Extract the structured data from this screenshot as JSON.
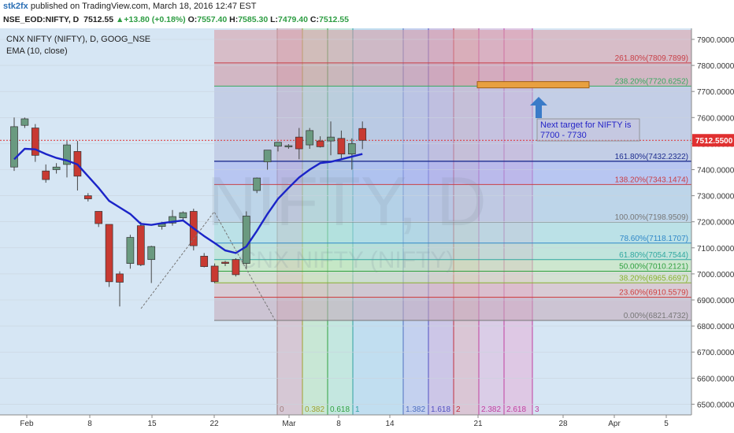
{
  "header": {
    "user": "stk2fx",
    "published": "published on TradingView.com, March 18, 2016 12:47 EST",
    "symbol": "NSE_EOD:NIFTY, D",
    "last": "7512.55",
    "change": "+13.80 (+0.18%)",
    "o_label": "O:",
    "open": "7557.40",
    "h_label": "H:",
    "high": "7585.30",
    "l_label": "L:",
    "low": "7479.40",
    "c_label": "C:",
    "close": "7512.55"
  },
  "legend": {
    "line1": "CNX NIFTY (NIFTY), D, GOOG_NSE",
    "line2": "EMA (10, close)"
  },
  "watermark": {
    "big": "NIFTY, D",
    "small": "CNX NIFTY (NIFTY)"
  },
  "colors": {
    "plot_bg": "#d6e6f4",
    "up_candle": "#6a9a80",
    "down_candle": "#c83a32",
    "ema": "#1b24c8",
    "price_line": "#e03030",
    "price_label_bg": "#e03030",
    "target_box": "#e8a040",
    "arrow": "#3a7bc8",
    "annotation_text": "#2424c8"
  },
  "chart_data": {
    "type": "candlestick",
    "title": "CNX NIFTY (NIFTY), D, GOOG_NSE",
    "ylim": [
      6450,
      7950
    ],
    "y_ticks": [
      "7900.0000",
      "7800.0000",
      "7700.0000",
      "7600.0000",
      "7500.0000",
      "7400.0000",
      "7300.0000",
      "7200.0000",
      "7100.0000",
      "7000.0000",
      "6900.0000",
      "6800.0000",
      "6700.0000",
      "6600.0000",
      "6500.0000"
    ],
    "x_ticks": [
      "Feb",
      "8",
      "15",
      "22",
      "Mar",
      "8",
      "14",
      "21",
      "28",
      "Apr",
      "5"
    ],
    "last_price_label": "7512.5500",
    "last_price": 7512.55,
    "candles": [
      {
        "x": "Feb 1",
        "o": 7410,
        "h": 7600,
        "l": 7395,
        "c": 7565
      },
      {
        "x": "Feb 2",
        "o": 7570,
        "h": 7600,
        "l": 7560,
        "c": 7595
      },
      {
        "x": "Feb 3",
        "o": 7560,
        "h": 7575,
        "l": 7430,
        "c": 7455
      },
      {
        "x": "Feb 4",
        "o": 7395,
        "h": 7420,
        "l": 7350,
        "c": 7362
      },
      {
        "x": "Feb 5",
        "o": 7400,
        "h": 7425,
        "l": 7385,
        "c": 7410
      },
      {
        "x": "Feb 8",
        "o": 7420,
        "h": 7510,
        "l": 7370,
        "c": 7495
      },
      {
        "x": "Feb 9",
        "o": 7470,
        "h": 7510,
        "l": 7320,
        "c": 7375
      },
      {
        "x": "Feb 10",
        "o": 7300,
        "h": 7310,
        "l": 7278,
        "c": 7288
      },
      {
        "x": "Feb 11",
        "o": 7240,
        "h": 7240,
        "l": 7180,
        "c": 7193
      },
      {
        "x": "Feb 12",
        "o": 7190,
        "h": 7190,
        "l": 6950,
        "c": 6970
      },
      {
        "x": "Feb 15",
        "o": 7000,
        "h": 7010,
        "l": 6875,
        "c": 6968
      },
      {
        "x": "Feb 16",
        "o": 7040,
        "h": 7150,
        "l": 7020,
        "c": 7140
      },
      {
        "x": "Feb 17",
        "o": 7185,
        "h": 7200,
        "l": 7030,
        "c": 7035
      },
      {
        "x": "Feb 18",
        "o": 7055,
        "h": 7108,
        "l": 6965,
        "c": 7105
      },
      {
        "x": "Feb 19",
        "o": 7182,
        "h": 7200,
        "l": 7170,
        "c": 7192
      },
      {
        "x": "Feb 22",
        "o": 7195,
        "h": 7245,
        "l": 7185,
        "c": 7220
      },
      {
        "x": "Feb 23",
        "o": 7215,
        "h": 7240,
        "l": 7205,
        "c": 7235
      },
      {
        "x": "Feb 24",
        "o": 7240,
        "h": 7250,
        "l": 7090,
        "c": 7108
      },
      {
        "x": "Feb 25",
        "o": 7068,
        "h": 7080,
        "l": 7025,
        "c": 7028
      },
      {
        "x": "Feb 26",
        "o": 7030,
        "h": 7040,
        "l": 6965,
        "c": 6970
      },
      {
        "x": "Feb 29",
        "o": 7045,
        "h": 7050,
        "l": 7030,
        "c": 7040
      },
      {
        "x": "Mar 1",
        "o": 7055,
        "h": 7060,
        "l": 6990,
        "c": 6997
      },
      {
        "x": "Mar 2",
        "o": 7040,
        "h": 7240,
        "l": 7020,
        "c": 7222
      },
      {
        "x": "Mar 3",
        "o": 7320,
        "h": 7370,
        "l": 7310,
        "c": 7368
      },
      {
        "x": "Mar 4",
        "o": 7430,
        "h": 7475,
        "l": 7400,
        "c": 7475
      },
      {
        "x": "Mar 7",
        "o": 7490,
        "h": 7505,
        "l": 7470,
        "c": 7505
      },
      {
        "x": "Mar 8",
        "o": 7490,
        "h": 7498,
        "l": 7480,
        "c": 7492
      },
      {
        "x": "Mar 9",
        "o": 7525,
        "h": 7560,
        "l": 7440,
        "c": 7480
      },
      {
        "x": "Mar 10",
        "o": 7495,
        "h": 7560,
        "l": 7480,
        "c": 7550
      },
      {
        "x": "Mar 11",
        "o": 7510,
        "h": 7528,
        "l": 7485,
        "c": 7488
      },
      {
        "x": "Mar 14",
        "o": 7510,
        "h": 7585,
        "l": 7455,
        "c": 7525
      },
      {
        "x": "Mar 15",
        "o": 7520,
        "h": 7550,
        "l": 7440,
        "c": 7460
      },
      {
        "x": "Mar 16",
        "o": 7460,
        "h": 7520,
        "l": 7400,
        "c": 7500
      },
      {
        "x": "Mar 17",
        "o": 7558,
        "h": 7585,
        "l": 7479,
        "c": 7512.55
      }
    ],
    "ema": {
      "name": "EMA (10, close)",
      "points": [
        [
          "Feb 1",
          7440
        ],
        [
          "Feb 2",
          7480
        ],
        [
          "Feb 3",
          7478
        ],
        [
          "Feb 4",
          7460
        ],
        [
          "Feb 5",
          7445
        ],
        [
          "Feb 8",
          7435
        ],
        [
          "Feb 9",
          7420
        ],
        [
          "Feb 10",
          7375
        ],
        [
          "Feb 11",
          7330
        ],
        [
          "Feb 12",
          7280
        ],
        [
          "Feb 15",
          7255
        ],
        [
          "Feb 16",
          7230
        ],
        [
          "Feb 17",
          7192
        ],
        [
          "Feb 18",
          7188
        ],
        [
          "Feb 19",
          7195
        ],
        [
          "Feb 22",
          7200
        ],
        [
          "Feb 23",
          7205
        ],
        [
          "Feb 24",
          7175
        ],
        [
          "Feb 25",
          7145
        ],
        [
          "Feb 26",
          7118
        ],
        [
          "Feb 29",
          7090
        ],
        [
          "Mar 1",
          7080
        ],
        [
          "Mar 2",
          7105
        ],
        [
          "Mar 3",
          7165
        ],
        [
          "Mar 4",
          7230
        ],
        [
          "Mar 7",
          7288
        ],
        [
          "Mar 8",
          7330
        ],
        [
          "Mar 9",
          7370
        ],
        [
          "Mar 10",
          7400
        ],
        [
          "Mar 11",
          7425
        ],
        [
          "Mar 14",
          7430
        ],
        [
          "Mar 15",
          7440
        ],
        [
          "Mar 16",
          7450
        ],
        [
          "Mar 17",
          7460
        ]
      ]
    },
    "fib_retracement": [
      {
        "label": "261.80%(7809.7899)",
        "value": 7809.79,
        "color": "#c84048",
        "fill": "#d89aa4"
      },
      {
        "label": "238.20%(7720.6252)",
        "value": 7720.63,
        "color": "#38a860",
        "fill": "#cf8f9c"
      },
      {
        "label": "161.80%(7432.2322)",
        "value": 7432.23,
        "color": "#1f2f90",
        "fill": "#b5b9da"
      },
      {
        "label": "138.20%(7343.1474)",
        "value": 7343.15,
        "color": "#c84048",
        "fill": "#a0acee"
      },
      {
        "label": "100.00%(7198.9509)",
        "value": 7198.95,
        "color": "#777777",
        "fill": "#a9c7e0"
      },
      {
        "label": "78.60%(7118.1707)",
        "value": 7118.17,
        "color": "#3088c8",
        "fill": "#a6dcdc"
      },
      {
        "label": "61.80%(7054.7544)",
        "value": 7054.75,
        "color": "#30a8a0",
        "fill": "#b0e2c8"
      },
      {
        "label": "50.00%(7010.2121)",
        "value": 7010.21,
        "color": "#30a040",
        "fill": "#c6e8b0"
      },
      {
        "label": "38.20%(6965.6697)",
        "value": 6965.67,
        "color": "#88b030",
        "fill": "#d6dcb8"
      },
      {
        "label": "23.60%(6910.5579)",
        "value": 6910.56,
        "color": "#d04040",
        "fill": "#dab4bc"
      },
      {
        "label": "0.00%(6821.4732)",
        "value": 6821.47,
        "color": "#777777",
        "fill": "#c4a8b8"
      }
    ],
    "fib_time": [
      {
        "label": "0",
        "color": "#a08080",
        "fill": "#d8a4b0"
      },
      {
        "label": "0.382",
        "color": "#a0a030",
        "fill": "#b8e8b0"
      },
      {
        "label": "0.618",
        "color": "#30a040",
        "fill": "#b0e8c8"
      },
      {
        "label": "1",
        "color": "#30a0a0",
        "fill": "#a8d4ec"
      },
      {
        "label": "1.382",
        "color": "#5070c0",
        "fill": "#b0b8e8"
      },
      {
        "label": "1.618",
        "color": "#5050c0",
        "fill": "#c0a0d8"
      },
      {
        "label": "2",
        "color": "#c03040",
        "fill": "#e0a0b0"
      },
      {
        "label": "2.382",
        "color": "#c040a0",
        "fill": "#e0b0d8"
      },
      {
        "label": "2.618",
        "color": "#c040a0",
        "fill": "#e8a4d0"
      },
      {
        "label": "3",
        "color": "#c040a0",
        "fill": ""
      }
    ],
    "annotation": {
      "text_line1": "Next target for NIFTY is",
      "text_line2": "7700 - 7730",
      "target_low": 7700,
      "target_high": 7730
    }
  }
}
